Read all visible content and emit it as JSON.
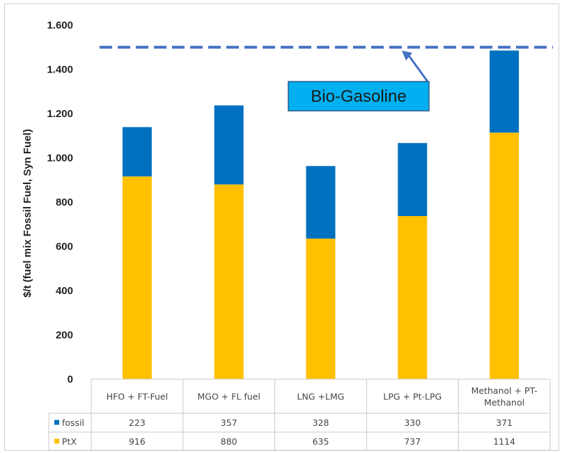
{
  "chart_data": {
    "type": "bar",
    "stacked": true,
    "categories": [
      [
        "HFO + FT-Fuel"
      ],
      [
        "MGO + FL fuel"
      ],
      [
        "LNG +LMG"
      ],
      [
        "LPG + Pt-LPG"
      ],
      [
        "Methanol + PT-",
        "Methanol"
      ]
    ],
    "series": [
      {
        "name": "PtX",
        "color": "#ffc000",
        "values": [
          916,
          880,
          635,
          737,
          1114
        ]
      },
      {
        "name": "fossil",
        "color": "#0070c0",
        "values": [
          223,
          357,
          328,
          330,
          371
        ]
      }
    ],
    "ylabel": "$/t (fuel mix Fossil Fuel, Syn Fuel)",
    "ylim": [
      0,
      1600
    ],
    "yticks": [
      0,
      200,
      400,
      600,
      800,
      1000,
      1200,
      1400,
      1600
    ],
    "ytick_labels": [
      "0",
      "200",
      "400",
      "600",
      "800",
      "1.000",
      "1.200",
      "1.400",
      "1.600"
    ],
    "reference_line": {
      "value": 1500,
      "color": "#4472c4",
      "style": "dashed"
    },
    "annotation": {
      "text": "Bio-Gasoline",
      "fill": "#00b0f0"
    },
    "data_table": true,
    "legend": "data-table"
  }
}
